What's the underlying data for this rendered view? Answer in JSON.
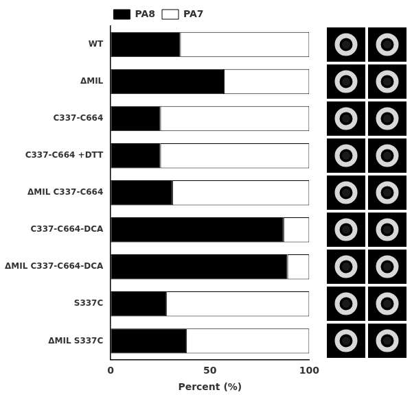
{
  "chart_data": {
    "type": "bar",
    "orientation": "horizontal",
    "stacked": true,
    "categories": [
      "WT",
      "ΔMIL",
      "C337-C664",
      "C337-C664 +DTT",
      "ΔMIL C337-C664",
      "C337-C664-DCA",
      "ΔMIL C337-C664-DCA",
      "S337C",
      "ΔMIL S337C"
    ],
    "series": [
      {
        "name": "PA8",
        "color": "#000000",
        "values": [
          35,
          57,
          25,
          25,
          31,
          87,
          89,
          28,
          38
        ]
      },
      {
        "name": "PA7",
        "color": "#ffffff",
        "values": [
          65,
          43,
          75,
          75,
          69,
          13,
          11,
          72,
          62
        ]
      }
    ],
    "xlabel": "Percent (%)",
    "xlim": [
      0,
      100
    ],
    "xticks": [
      0,
      50,
      100
    ],
    "grid": false,
    "legend": "top"
  }
}
